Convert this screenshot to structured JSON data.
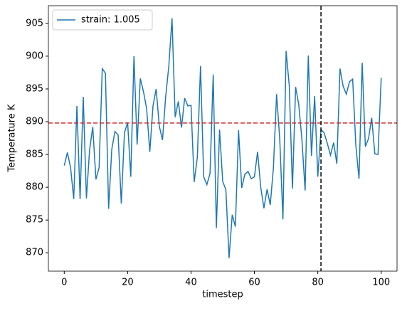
{
  "chart_data": {
    "type": "line",
    "xlabel": "timestep",
    "ylabel": "Temperature K",
    "x": [
      0,
      1,
      2,
      3,
      4,
      5,
      6,
      7,
      8,
      9,
      10,
      11,
      12,
      13,
      14,
      15,
      16,
      17,
      18,
      19,
      20,
      21,
      22,
      23,
      24,
      25,
      26,
      27,
      28,
      29,
      30,
      31,
      32,
      33,
      34,
      35,
      36,
      37,
      38,
      39,
      40,
      41,
      42,
      43,
      44,
      45,
      46,
      47,
      48,
      49,
      50,
      51,
      52,
      53,
      54,
      55,
      56,
      57,
      58,
      59,
      60,
      61,
      62,
      63,
      64,
      65,
      66,
      67,
      68,
      69,
      70,
      71,
      72,
      73,
      74,
      75,
      76,
      77,
      78,
      79,
      80,
      81,
      82,
      83,
      84,
      85,
      86,
      87,
      88,
      89,
      90,
      91,
      92,
      93,
      94,
      95,
      96,
      97,
      98,
      99,
      100
    ],
    "series": [
      {
        "name": "strain: 1.005",
        "color": "#1f77b4",
        "values": [
          883.3,
          885.3,
          883,
          878.2,
          892.4,
          878.2,
          893.8,
          878.3,
          885.7,
          889.2,
          881.2,
          883,
          898.1,
          897.4,
          876.7,
          885.8,
          888.5,
          888,
          877.5,
          888.3,
          889.9,
          881.6,
          900,
          886.5,
          896.6,
          894.6,
          892,
          885.4,
          892.4,
          895,
          889.3,
          887.2,
          893.8,
          898.5,
          905.8,
          890.7,
          893.1,
          889.1,
          893.6,
          892.4,
          892.5,
          880.8,
          884.6,
          898.5,
          881.6,
          880.4,
          882.1,
          897.2,
          873.8,
          888.8,
          880.9,
          879.6,
          869.2,
          875.8,
          874,
          888.7,
          879.9,
          882,
          882.4,
          881.3,
          881.6,
          885.4,
          880,
          876.8,
          879.7,
          877.3,
          883,
          894.2,
          887.3,
          875.1,
          900.8,
          895.5,
          879.8,
          895.3,
          892.6,
          887.2,
          879.5,
          900.1,
          884.8,
          893.9,
          881.6,
          888.8,
          888.3,
          886.7,
          884.9,
          886.8,
          883.6,
          898.1,
          895.4,
          894.2,
          896.1,
          896.5,
          886.4,
          881.3,
          899,
          886.2,
          887.4,
          890.6,
          885.1,
          885,
          896.7
        ]
      }
    ],
    "xlim": [
      -5,
      105
    ],
    "ylim": [
      867.2,
      907.7
    ],
    "xticks": [
      0,
      20,
      40,
      60,
      80,
      100
    ],
    "yticks": [
      870,
      875,
      880,
      885,
      890,
      895,
      900,
      905
    ],
    "hline": {
      "value": 889.8,
      "color": "#d62728"
    },
    "vline": {
      "value": 81,
      "color": "#000000"
    },
    "legend": "upper left"
  }
}
